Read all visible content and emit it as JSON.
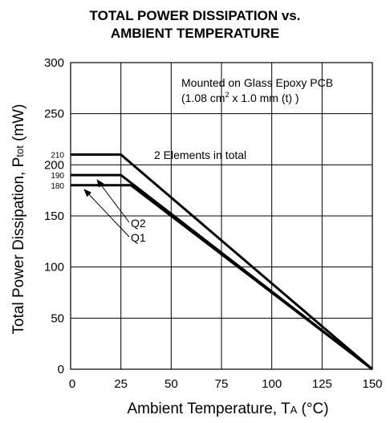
{
  "chart_data": {
    "type": "line",
    "title": [
      "TOTAL POWER DISSIPATION vs.",
      "AMBIENT TEMPERATURE"
    ],
    "xlabel": "Ambient Temperature, T",
    "xlabel_sub": "A",
    "xlabel_unit": "(°C)",
    "ylabel": "Total Power Dissipation, P",
    "ylabel_sub": "tot",
    "ylabel_unit": "(mW)",
    "xlim": [
      0,
      150
    ],
    "ylim": [
      0,
      300
    ],
    "xticks": [
      25,
      50,
      75,
      100,
      125,
      150
    ],
    "yticks": [
      0,
      50,
      100,
      150,
      200,
      250,
      300
    ],
    "yticks_small": [
      180,
      190,
      210
    ],
    "x_origin_label": "0",
    "grid": true,
    "series": [
      {
        "name": "2 Elements in total",
        "x": [
          0,
          25,
          150
        ],
        "y": [
          210,
          210,
          0
        ]
      },
      {
        "name": "Q2",
        "x": [
          0,
          25,
          150
        ],
        "y": [
          190,
          190,
          0
        ]
      },
      {
        "name": "Q1",
        "x": [
          0,
          30,
          150
        ],
        "y": [
          180,
          180,
          0
        ]
      }
    ],
    "annotations": {
      "condition_line1": "Mounted on Glass Epoxy PCB",
      "condition_line2_prefix": "(1.08 cm",
      "condition_line2_sup": "2",
      "condition_line2_suffix": " x 1.0 mm (t) )",
      "total_label": "2 Elements in total",
      "q2_label": "Q2",
      "q1_label": "Q1"
    }
  }
}
